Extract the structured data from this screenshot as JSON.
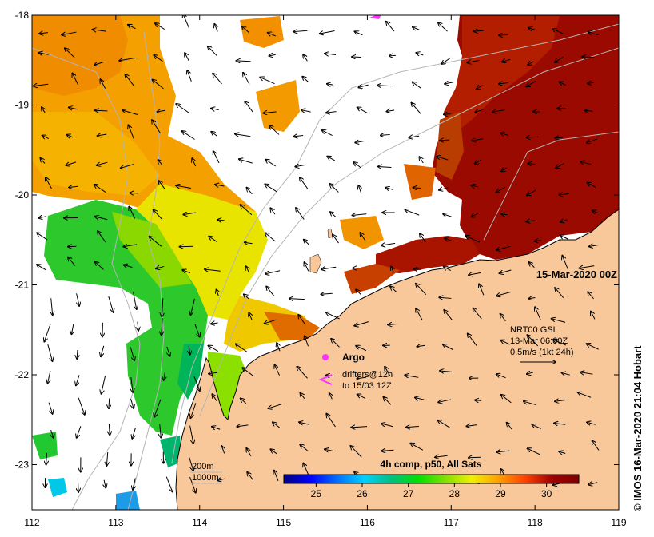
{
  "map": {
    "timestamp_label": "15-Mar-2020 00Z",
    "lat_ticks": [
      "-18",
      "-19",
      "-20",
      "-21",
      "-22",
      "-23"
    ],
    "lon_ticks": [
      "112",
      "113",
      "114",
      "115",
      "116",
      "117",
      "118",
      "119"
    ],
    "colors": {
      "land": "#f8c89b",
      "no_data": "#ffffff",
      "contour": "#b4b4b4",
      "argo": "#ff33ff",
      "arrow": "#000000"
    }
  },
  "legend": {
    "argo_label": "Argo",
    "drifters_line1": "drifters@12h",
    "drifters_line2": "to 15/03 12Z",
    "current_source": "NRT00 GSL",
    "current_time": "13-Mar 06:00Z",
    "current_scale": "0.5m/s (1kt 24h)",
    "depth_200": "200m",
    "depth_1000": "1000m"
  },
  "colorbar": {
    "title": "4h comp, p50, All Sats",
    "ticks": [
      "25",
      "26",
      "27",
      "28",
      "29",
      "30"
    ],
    "range": [
      24.3,
      30.7
    ],
    "stops": [
      "#00007f",
      "#0000ff",
      "#0070ff",
      "#00d0ff",
      "#00c080",
      "#00e000",
      "#80e000",
      "#f0f000",
      "#ffa000",
      "#ff4000",
      "#a00000",
      "#7f0000"
    ]
  },
  "credit": "© IMOS 16-Mar-2020 21:04 Hobart"
}
